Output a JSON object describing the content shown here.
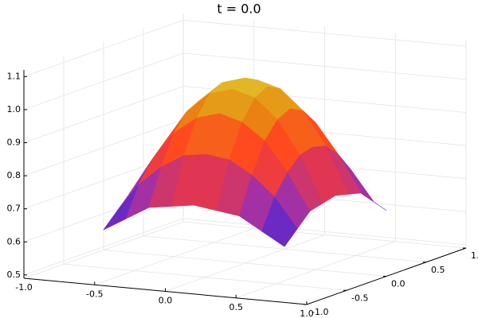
{
  "chart_data": {
    "type": "surface",
    "title": "t = 0.0",
    "x": [
      -0.64,
      -0.48,
      -0.32,
      -0.16,
      0,
      0.16,
      0.32,
      0.48,
      0.64
    ],
    "y": [
      -0.64,
      -0.48,
      -0.32,
      -0.16,
      0,
      0.16,
      0.32,
      0.48,
      0.64
    ],
    "z": [
      [
        0.62,
        0.66,
        0.7,
        0.71,
        0.72,
        0.71,
        0.7,
        0.66,
        0.62
      ],
      [
        0.66,
        0.75,
        0.81,
        0.85,
        0.86,
        0.85,
        0.81,
        0.75,
        0.66
      ],
      [
        0.7,
        0.81,
        0.9,
        0.95,
        0.97,
        0.95,
        0.9,
        0.81,
        0.7
      ],
      [
        0.71,
        0.85,
        0.95,
        1.01,
        1.03,
        1.01,
        0.95,
        0.85,
        0.71
      ],
      [
        0.72,
        0.86,
        0.97,
        1.03,
        1.05,
        1.03,
        0.97,
        0.86,
        0.72
      ],
      [
        0.71,
        0.85,
        0.95,
        1.01,
        1.03,
        1.01,
        0.95,
        0.85,
        0.71
      ],
      [
        0.7,
        0.81,
        0.9,
        0.95,
        0.97,
        0.95,
        0.9,
        0.81,
        0.7
      ],
      [
        0.66,
        0.75,
        0.81,
        0.85,
        0.86,
        0.85,
        0.81,
        0.75,
        0.66
      ],
      [
        0.62,
        0.66,
        0.7,
        0.71,
        0.72,
        0.71,
        0.7,
        0.66,
        0.62
      ]
    ],
    "colormap": [
      "#3c1fbf",
      "#8a2fc6",
      "#e8374a",
      "#ff4a20",
      "#e88a10",
      "#e2c32c"
    ],
    "xlim": [
      -1,
      1
    ],
    "ylim": [
      -1,
      1
    ],
    "zlim": [
      0.49,
      1.12
    ],
    "xticks": [
      {
        "value": -1,
        "label": "-1.0"
      },
      -0.5,
      {
        "value": 0,
        "label": "0.0"
      },
      0.5,
      {
        "value": 1,
        "label": "1.0"
      }
    ],
    "yticks": [
      {
        "value": -1,
        "label": "-1.0"
      },
      -0.5,
      {
        "value": 0,
        "label": "0.0"
      },
      0.5,
      {
        "value": 1,
        "label": "1.0"
      }
    ],
    "zticks": [
      0.5,
      0.6,
      0.7,
      0.8,
      0.9,
      {
        "value": 1,
        "label": "1.0"
      },
      1.1
    ],
    "grid": true
  }
}
